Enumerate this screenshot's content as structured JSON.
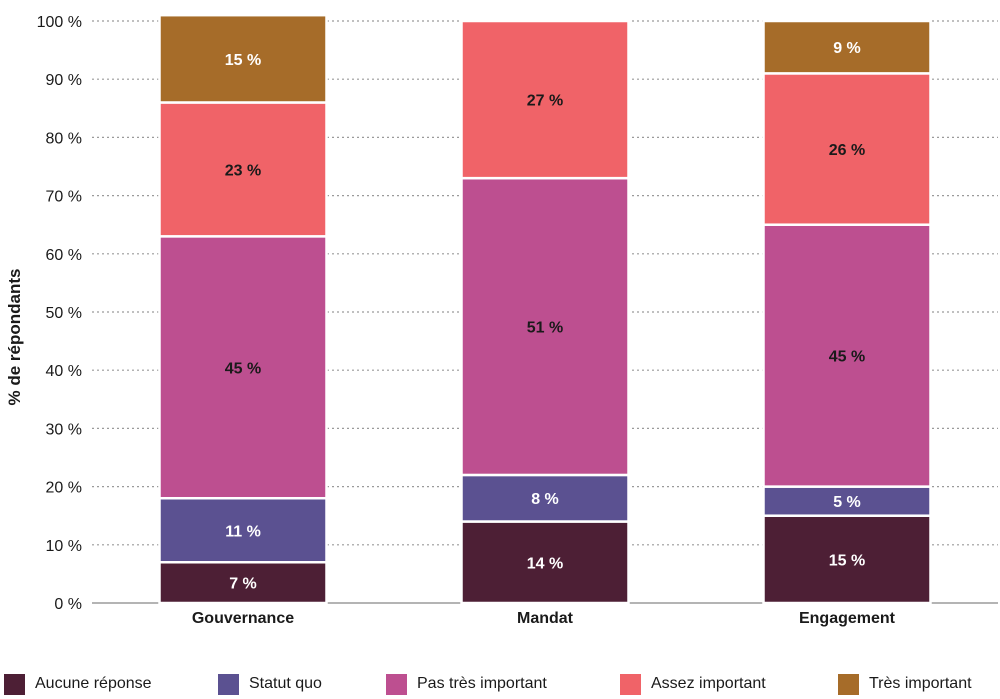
{
  "chart_data": {
    "type": "bar",
    "stacked": true,
    "ylabel": "% de répondants",
    "ylim": [
      0,
      100
    ],
    "yticks": [
      "0 %",
      "10 %",
      "20 %",
      "30 %",
      "40 %",
      "50 %",
      "60 %",
      "70 %",
      "80 %",
      "90 %",
      "100 %"
    ],
    "grid": true,
    "legend_position": "bottom",
    "categories": [
      "Gouvernance",
      "Mandat",
      "Engagement"
    ],
    "series": [
      {
        "name": "Aucune réponse",
        "color": "#4d1f35",
        "label_color": "#ffffff",
        "values": [
          7,
          14,
          15
        ],
        "labels": [
          "7 %",
          "14 %",
          "15 %"
        ]
      },
      {
        "name": "Statut quo",
        "color": "#5b5191",
        "label_color": "#ffffff",
        "values": [
          11,
          8,
          5
        ],
        "labels": [
          "11 %",
          "8 %",
          "5 %"
        ]
      },
      {
        "name": "Pas très important",
        "color": "#bd4f90",
        "label_color": "#1a1a1a",
        "values": [
          45,
          51,
          45
        ],
        "labels": [
          "45 %",
          "51 %",
          "45 %"
        ]
      },
      {
        "name": "Assez important",
        "color": "#f06368",
        "label_color": "#1a1a1a",
        "values": [
          23,
          27,
          26
        ],
        "labels": [
          "23 %",
          "27 %",
          "26 %"
        ]
      },
      {
        "name": "Très important",
        "color": "#a66c29",
        "label_color": "#ffffff",
        "values": [
          15,
          0,
          9
        ],
        "labels": [
          "15 %",
          "",
          "9 %"
        ]
      }
    ]
  }
}
